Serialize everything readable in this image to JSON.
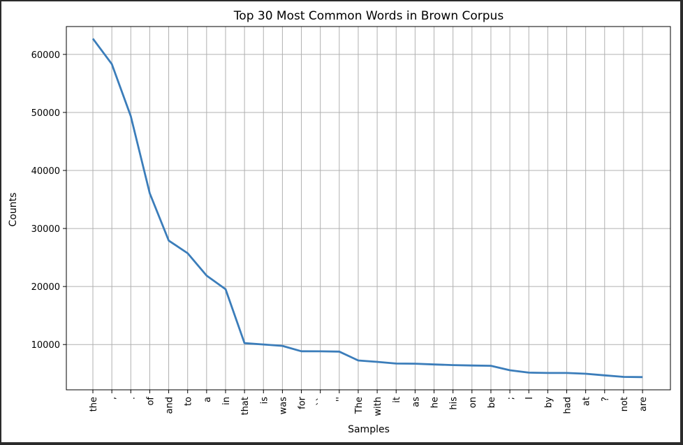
{
  "chart_data": {
    "type": "line",
    "title": "Top 30 Most Common Words in Brown Corpus",
    "xlabel": "Samples",
    "ylabel": "Counts",
    "categories": [
      "the",
      ",",
      ".",
      "of",
      "and",
      "to",
      "a",
      "in",
      "that",
      "is",
      "was",
      "for",
      "``",
      "''",
      "The",
      "with",
      "it",
      "as",
      "he",
      "his",
      "on",
      "be",
      ";",
      "I",
      "by",
      "had",
      "at",
      "?",
      "not",
      "are"
    ],
    "values": [
      62713,
      58334,
      49346,
      36080,
      27915,
      25732,
      21881,
      19536,
      10237,
      10011,
      9777,
      8841,
      8837,
      8789,
      7258,
      7012,
      6723,
      6706,
      6566,
      6466,
      6395,
      6344,
      5566,
      5161,
      5103,
      5102,
      4967,
      4693,
      4430,
      4390
    ],
    "yticks": [
      10000,
      20000,
      30000,
      40000,
      50000,
      60000
    ],
    "ylim": [
      2200,
      64800
    ],
    "grid": true,
    "line_color": "#3b7dba",
    "grid_color": "#b0b0b0"
  }
}
